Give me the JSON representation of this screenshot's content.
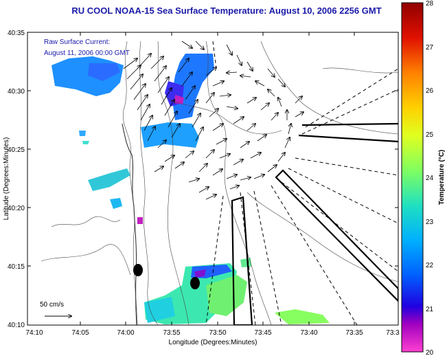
{
  "title": "RU COOL  NOAA-15  Sea Surface Temperature:  August 10, 2006 2256 GMT",
  "annotation": {
    "line1": "Raw Surface Current:",
    "line2": "August 11, 2006 00:00 GMT"
  },
  "scale_label": "50 cm/s",
  "x_axis": {
    "label": "Longitude (Degrees:Minutes)",
    "ticks": [
      "74:10",
      "74:05",
      "74:00",
      "73:55",
      "73:50",
      "73:45",
      "73:40",
      "73:35",
      "73:3"
    ]
  },
  "y_axis": {
    "label": "Latitude (Degrees:Minutes)",
    "ticks": [
      "40:35",
      "40:30",
      "40:25",
      "40:20",
      "40:15",
      "40:10"
    ]
  },
  "colorbar": {
    "label": "Temperature (°C)",
    "ticks": [
      "28",
      "27",
      "26",
      "25",
      "24",
      "23",
      "22",
      "21",
      "20"
    ],
    "min": 20,
    "max": 28
  },
  "colors": {
    "title": "#1a1aa8",
    "annotation": "#1a1aa8"
  }
}
